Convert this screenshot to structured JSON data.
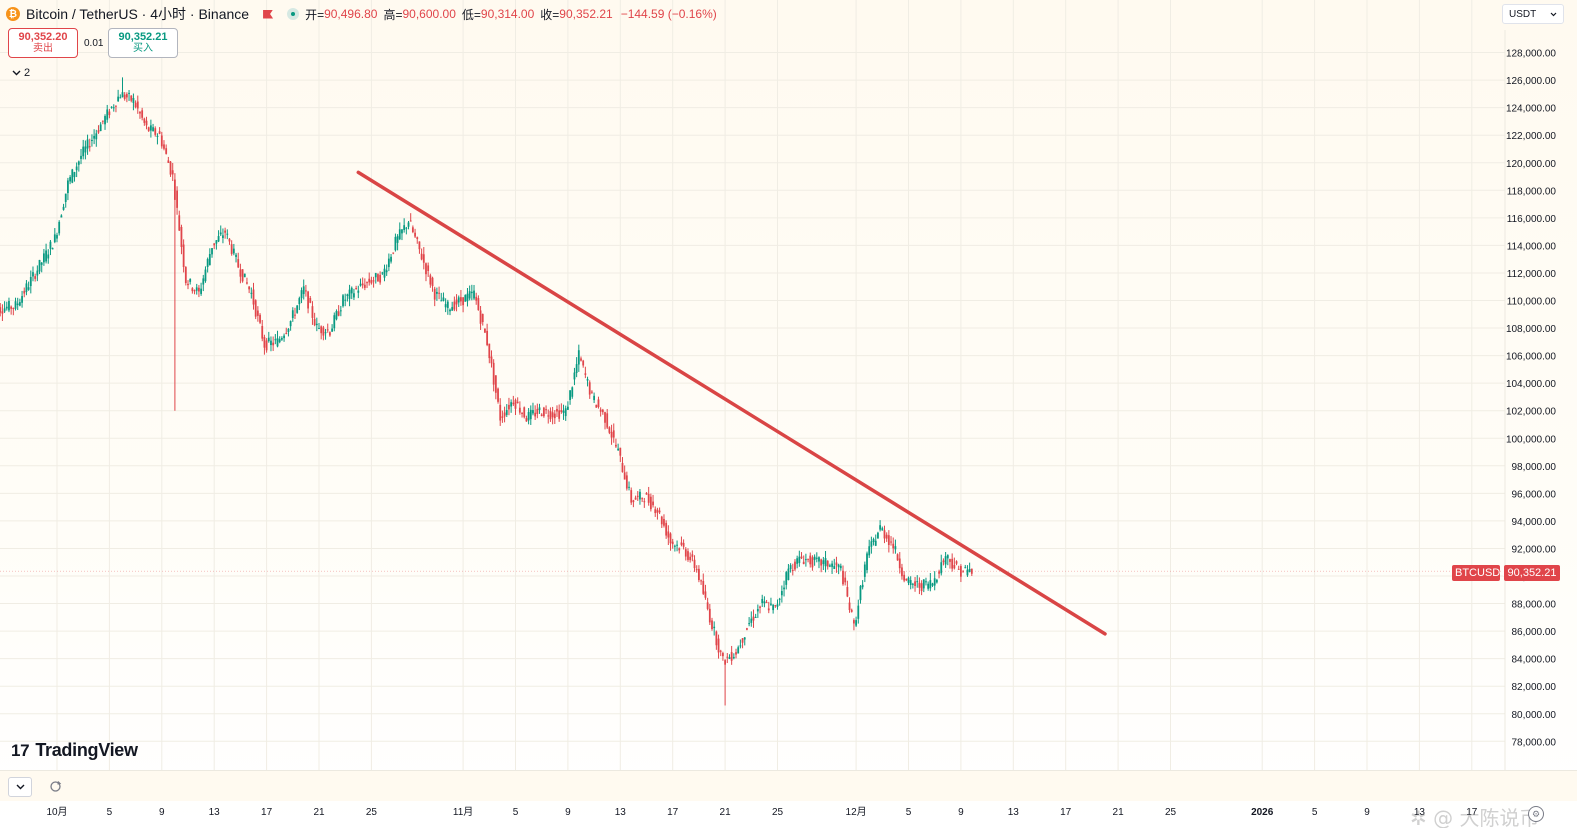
{
  "legend": {
    "symbol_title": "Bitcoin / TetherUS · 4小时 · Binance",
    "logo_glyph": "₿",
    "open_key": "开=",
    "open": "90,496.80",
    "high_key": "高=",
    "high": "90,600.00",
    "low_key": "低=",
    "low": "90,314.00",
    "close_key": "收=",
    "close": "90,352.21",
    "change": "−144.59 (−0.16%)"
  },
  "trade": {
    "sell_price": "90,352.20",
    "sell_label": "卖出",
    "spread": "0.01",
    "buy_price": "90,352.21",
    "buy_label": "买入"
  },
  "indicators_collapse": {
    "count": "2",
    "icon": "chevron-down-icon"
  },
  "currency": {
    "label": "USDT",
    "icon": "chevron-down-icon"
  },
  "branding": {
    "logo_mark": "17",
    "logo_text": "TradingView"
  },
  "price_tag": {
    "symbol": "BTCUSDT",
    "last_price": "90,352.21",
    "color": "#e0454a"
  },
  "bottom_toolbar": {
    "collapse_icon": "chevron-down-icon",
    "replay_icon": "refresh-icon",
    "settings_icon": "gear-icon"
  },
  "watermark": "✲ @ 大陈说币",
  "colors": {
    "up": "#089981",
    "down": "#e0454a",
    "trendline": "#d94545",
    "grid": "#f0ede4",
    "axis_text": "#131722"
  },
  "chart_data": {
    "type": "candlestick",
    "title": "Bitcoin / TetherUS · 4小时 · Binance",
    "currency": "USDT",
    "y_ticks": [
      78000,
      80000,
      82000,
      84000,
      86000,
      88000,
      90000,
      92000,
      94000,
      96000,
      98000,
      100000,
      102000,
      104000,
      106000,
      108000,
      110000,
      112000,
      114000,
      116000,
      118000,
      120000,
      122000,
      124000,
      126000,
      128000
    ],
    "x_ticks": [
      {
        "date": "2025-10-01",
        "label": "10月"
      },
      {
        "date": "2025-10-05",
        "label": "5"
      },
      {
        "date": "2025-10-09",
        "label": "9"
      },
      {
        "date": "2025-10-13",
        "label": "13"
      },
      {
        "date": "2025-10-17",
        "label": "17"
      },
      {
        "date": "2025-10-21",
        "label": "21"
      },
      {
        "date": "2025-10-25",
        "label": "25"
      },
      {
        "date": "2025-11-01",
        "label": "11月"
      },
      {
        "date": "2025-11-05",
        "label": "5"
      },
      {
        "date": "2025-11-09",
        "label": "9"
      },
      {
        "date": "2025-11-13",
        "label": "13"
      },
      {
        "date": "2025-11-17",
        "label": "17"
      },
      {
        "date": "2025-11-21",
        "label": "21"
      },
      {
        "date": "2025-11-25",
        "label": "25"
      },
      {
        "date": "2025-12-01",
        "label": "12月"
      },
      {
        "date": "2025-12-05",
        "label": "5"
      },
      {
        "date": "2025-12-09",
        "label": "9"
      },
      {
        "date": "2025-12-13",
        "label": "13"
      },
      {
        "date": "2025-12-17",
        "label": "17"
      },
      {
        "date": "2025-12-21",
        "label": "21"
      },
      {
        "date": "2025-12-25",
        "label": "25"
      },
      {
        "date": "2026-01-01",
        "label": "2026"
      },
      {
        "date": "2026-01-05",
        "label": "5"
      },
      {
        "date": "2026-01-09",
        "label": "9"
      },
      {
        "date": "2026-01-13",
        "label": "13"
      },
      {
        "date": "2026-01-17",
        "label": "17"
      }
    ],
    "price_path": [
      [
        "2025-09-26",
        109300
      ],
      [
        "2025-09-28",
        109600
      ],
      [
        "2025-09-30",
        112800
      ],
      [
        "2025-10-01",
        114500
      ],
      [
        "2025-10-02",
        118500
      ],
      [
        "2025-10-03",
        120500
      ],
      [
        "2025-10-04",
        122000
      ],
      [
        "2025-10-05",
        123500
      ],
      [
        "2025-10-06",
        125000
      ],
      [
        "2025-10-07",
        124500
      ],
      [
        "2025-10-08",
        122500
      ],
      [
        "2025-10-09",
        122000
      ],
      [
        "2025-10-10",
        119000
      ],
      [
        "2025-10-11",
        111500
      ],
      [
        "2025-10-12",
        110500
      ],
      [
        "2025-10-13",
        114000
      ],
      [
        "2025-10-14",
        115000
      ],
      [
        "2025-10-15",
        112500
      ],
      [
        "2025-10-16",
        110500
      ],
      [
        "2025-10-17",
        106800
      ],
      [
        "2025-10-18",
        107000
      ],
      [
        "2025-10-19",
        108500
      ],
      [
        "2025-10-20",
        110800
      ],
      [
        "2025-10-21",
        108000
      ],
      [
        "2025-10-22",
        107800
      ],
      [
        "2025-10-23",
        110000
      ],
      [
        "2025-10-24",
        110800
      ],
      [
        "2025-10-25",
        111400
      ],
      [
        "2025-10-26",
        111800
      ],
      [
        "2025-10-27",
        114200
      ],
      [
        "2025-10-28",
        115800
      ],
      [
        "2025-10-29",
        113200
      ],
      [
        "2025-10-30",
        110500
      ],
      [
        "2025-10-31",
        109500
      ],
      [
        "2025-11-01",
        110000
      ],
      [
        "2025-11-02",
        110500
      ],
      [
        "2025-11-03",
        107000
      ],
      [
        "2025-11-04",
        101500
      ],
      [
        "2025-11-05",
        102800
      ],
      [
        "2025-11-06",
        101500
      ],
      [
        "2025-11-07",
        102000
      ],
      [
        "2025-11-08",
        101800
      ],
      [
        "2025-11-09",
        101900
      ],
      [
        "2025-11-10",
        106000
      ],
      [
        "2025-11-11",
        103000
      ],
      [
        "2025-11-12",
        101500
      ],
      [
        "2025-11-13",
        99000
      ],
      [
        "2025-11-14",
        95500
      ],
      [
        "2025-11-15",
        95800
      ],
      [
        "2025-11-16",
        94800
      ],
      [
        "2025-11-17",
        92500
      ],
      [
        "2025-11-18",
        92000
      ],
      [
        "2025-11-19",
        90500
      ],
      [
        "2025-11-20",
        87000
      ],
      [
        "2025-11-21",
        83800
      ],
      [
        "2025-11-22",
        84500
      ],
      [
        "2025-11-23",
        86600
      ],
      [
        "2025-11-24",
        88000
      ],
      [
        "2025-11-25",
        87600
      ],
      [
        "2025-11-26",
        90500
      ],
      [
        "2025-11-27",
        91300
      ],
      [
        "2025-11-28",
        91000
      ],
      [
        "2025-11-29",
        90900
      ],
      [
        "2025-11-30",
        90500
      ],
      [
        "2025-12-01",
        86300
      ],
      [
        "2025-12-02",
        91500
      ],
      [
        "2025-12-03",
        93500
      ],
      [
        "2025-12-04",
        92200
      ],
      [
        "2025-12-05",
        89500
      ],
      [
        "2025-12-06",
        89300
      ],
      [
        "2025-12-07",
        89500
      ],
      [
        "2025-12-08",
        91500
      ],
      [
        "2025-12-09",
        90400
      ],
      [
        "2025-12-10",
        90352
      ]
    ],
    "range_extremes": {
      "high": [
        "2025-10-06",
        126200
      ],
      "low": [
        "2025-11-21",
        80600
      ],
      "flash_low": [
        "2025-10-10",
        102000
      ]
    },
    "last_price": 90352.21,
    "drawings": [
      {
        "type": "trendline",
        "color": "#d94545",
        "from": [
          "2025-10-24",
          119300
        ],
        "to": [
          "2025-12-20",
          85800
        ]
      }
    ]
  }
}
